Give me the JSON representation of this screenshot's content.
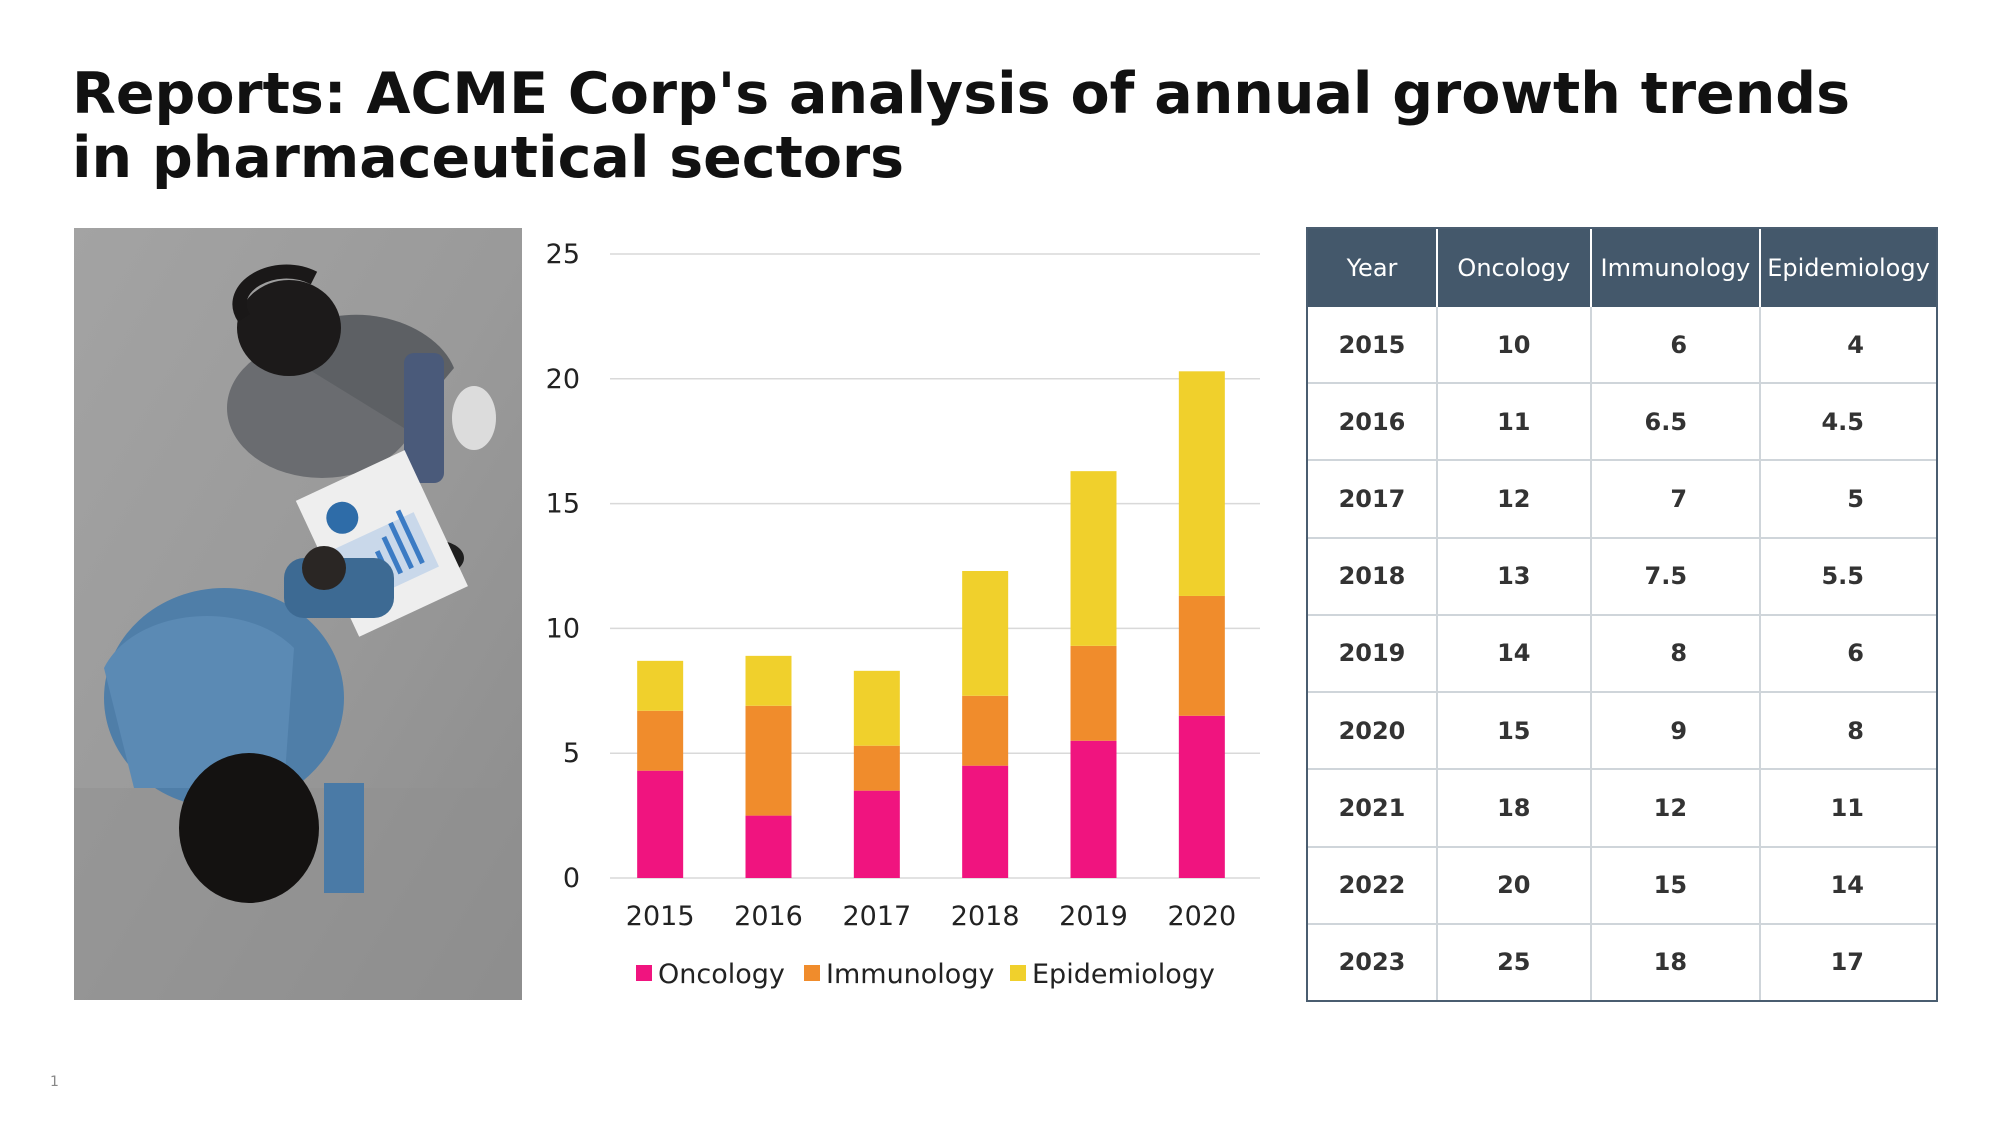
{
  "slide": {
    "title": "Reports: ACME Corp's analysis of annual growth trends in pharmaceutical sectors",
    "page_number": "1"
  },
  "colors": {
    "oncology": "#f0147f",
    "immunology": "#f08c2c",
    "epidemiology": "#f0d02c",
    "table_header": "#44586b"
  },
  "chart_data": {
    "type": "bar",
    "stacked": true,
    "categories": [
      "2015",
      "2016",
      "2017",
      "2018",
      "2019",
      "2020"
    ],
    "series": [
      {
        "name": "Oncology",
        "values": [
          4.3,
          2.5,
          3.5,
          4.5,
          5.5,
          6.5
        ]
      },
      {
        "name": "Immunology",
        "values": [
          2.4,
          4.4,
          1.8,
          2.8,
          3.8,
          4.8
        ]
      },
      {
        "name": "Epidemiology",
        "values": [
          2.0,
          2.0,
          3.0,
          5.0,
          7.0,
          9.0
        ]
      }
    ],
    "y_ticks": [
      "0",
      "5",
      "10",
      "15",
      "20",
      "25"
    ],
    "ylim": [
      0,
      25
    ],
    "grid": true,
    "legend": "bottom"
  },
  "table": {
    "headers": [
      "Year",
      "Oncology",
      "Immunology",
      "Epidemiology"
    ],
    "rows": [
      [
        "2015",
        "10",
        "6",
        "4"
      ],
      [
        "2016",
        "11",
        "6.5",
        "4.5"
      ],
      [
        "2017",
        "12",
        "7",
        "5"
      ],
      [
        "2018",
        "13",
        "7.5",
        "5.5"
      ],
      [
        "2019",
        "14",
        "8",
        "6"
      ],
      [
        "2020",
        "15",
        "9",
        "8"
      ],
      [
        "2021",
        "18",
        "12",
        "11"
      ],
      [
        "2022",
        "20",
        "15",
        "14"
      ],
      [
        "2023",
        "25",
        "18",
        "17"
      ]
    ]
  }
}
